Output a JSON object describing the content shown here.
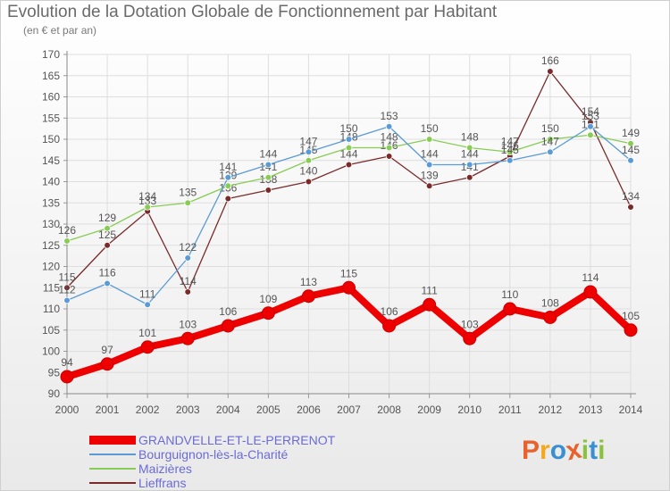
{
  "header": {
    "title": "Evolution de la Dotation Globale de Fonctionnement par Habitant",
    "subtitle": "(en € et par an)"
  },
  "brand": {
    "letters": [
      "P",
      "r",
      "o",
      "x",
      "i",
      "t",
      "i"
    ],
    "colors": [
      "#e8632b",
      "#f4a81d",
      "#3a8fd0",
      "#e8632b",
      "#8ac23f",
      "#3a8fd0",
      "#8ac23f"
    ]
  },
  "chart_data": {
    "type": "line",
    "title": "Evolution de la Dotation Globale de Fonctionnement par Habitant",
    "subtitle": "(en € et par an)",
    "xlabel": "",
    "ylabel": "",
    "ylim": [
      90,
      170
    ],
    "yticks": [
      90,
      95,
      100,
      105,
      110,
      115,
      120,
      125,
      130,
      135,
      140,
      145,
      150,
      155,
      160,
      165,
      170
    ],
    "grid": true,
    "legend_position": "bottom-left",
    "x": [
      "2000",
      "2001",
      "2002",
      "2003",
      "2004",
      "2005",
      "2006",
      "2007",
      "2008",
      "2009",
      "2010",
      "2011",
      "2012",
      "2013",
      "2014"
    ],
    "series": [
      {
        "name": "GRANDVELLE-ET-LE-PERRENOT",
        "color": "#ee0000",
        "values": [
          94,
          97,
          101,
          103,
          106,
          109,
          113,
          115,
          106,
          111,
          103,
          110,
          108,
          114,
          105
        ]
      },
      {
        "name": "Bourguignon-lès-la-Charité",
        "color": "#5a9bd5",
        "values": [
          112,
          116,
          111,
          122,
          141,
          144,
          147,
          150,
          153,
          144,
          144,
          145,
          147,
          153,
          145
        ]
      },
      {
        "name": "Maizières",
        "color": "#88cc55",
        "values": [
          126,
          129,
          134,
          135,
          139,
          141,
          145,
          148,
          148,
          150,
          148,
          147,
          150,
          151,
          149
        ]
      },
      {
        "name": "Lieffrans",
        "color": "#7a2a2a",
        "values": [
          115,
          125,
          133,
          114,
          136,
          138,
          140,
          144,
          146,
          139,
          141,
          146,
          166,
          154,
          134
        ]
      }
    ]
  }
}
